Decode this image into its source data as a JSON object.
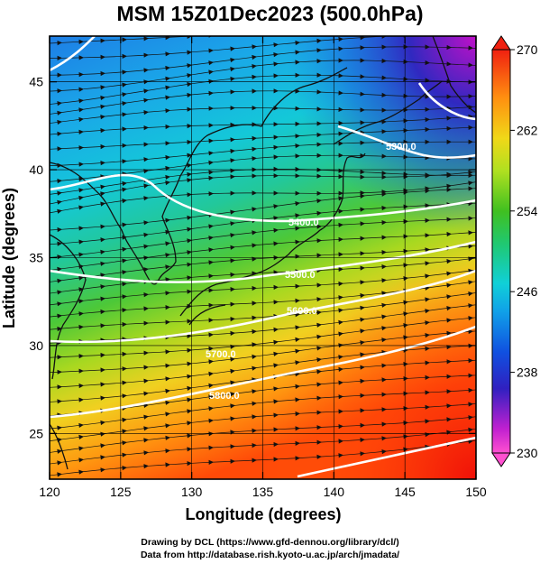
{
  "title": "MSM 15Z01Dec2023 (500.0hPa)",
  "chart_data": {
    "type": "map",
    "x_axis": {
      "label": "Longitude (degrees)",
      "range": [
        120,
        150
      ],
      "ticks": [
        "120",
        "125",
        "130",
        "135",
        "140",
        "145",
        "150"
      ]
    },
    "y_axis": {
      "label": "Latitude  (degrees)",
      "range": [
        22.4,
        47.6
      ],
      "ticks": [
        "25",
        "30",
        "35",
        "40",
        "45"
      ]
    },
    "colorbar": {
      "range": [
        230,
        270
      ],
      "ticks": [
        "230",
        "238",
        "246",
        "254",
        "262",
        "270"
      ]
    },
    "shaded_field_low_color": "#d000d0",
    "shaded_field_high_color": "#ff1000",
    "contours": [
      {
        "label": "5300.0",
        "value": 5300
      },
      {
        "label": "5400.0",
        "value": 5400
      },
      {
        "label": "5500.0",
        "value": 5500
      },
      {
        "label": "5600.0",
        "value": 5600
      },
      {
        "label": "5700.0",
        "value": 5700
      },
      {
        "label": "5800.0",
        "value": 5800
      }
    ],
    "wind_vectors": "westerly, strongest in the 30–40°N jet band"
  },
  "footer": {
    "line1": "Drawing by DCL (https://www.gfd-dennou.org/library/dcl/)",
    "line2": "Data from http://database.rish.kyoto-u.ac.jp/arch/jmadata/"
  }
}
